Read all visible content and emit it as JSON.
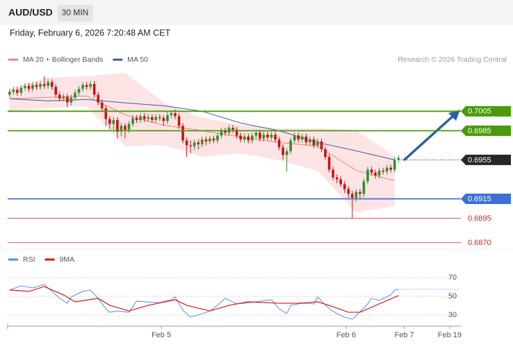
{
  "header": {
    "symbol": "AUD/USD",
    "timeframe": "30 MIN",
    "timestamp": "Friday, February 6, 2026 7:20:48 AM CET"
  },
  "chart_data": [
    {
      "type": "candlestick",
      "source": "Research © 2026 Trading Central",
      "up_color": "#2f8f2f",
      "down_color": "#cc1111",
      "xlim": [
        -0.5,
        117.2
      ],
      "ylim": [
        0.6864,
        0.7068
      ],
      "xticks": [
        {
          "value": 39.4,
          "label": "Feb 5"
        },
        {
          "value": 87.4,
          "label": "Feb 6"
        },
        {
          "value": 102.5,
          "label": "Feb 7"
        },
        {
          "value": 114.3,
          "label": "Feb 19"
        }
      ],
      "open": [
        0.7022,
        0.7025,
        0.7027,
        0.7024,
        0.7029,
        0.7031,
        0.7028,
        0.7032,
        0.703,
        0.7033,
        0.7031,
        0.7035,
        0.703,
        0.7022,
        0.7018,
        0.702,
        0.7014,
        0.7019,
        0.7024,
        0.7028,
        0.7032,
        0.703,
        0.7033,
        0.7022,
        0.7014,
        0.7008,
        0.6997,
        0.6992,
        0.6996,
        0.6984,
        0.699,
        0.6986,
        0.6992,
        0.6998,
        0.6996,
        0.7,
        0.6997,
        0.6999,
        0.6996,
        0.6999,
        0.6998,
        0.6995,
        0.7001,
        0.7003,
        0.7,
        0.699,
        0.6975,
        0.697,
        0.6969,
        0.6973,
        0.6971,
        0.6976,
        0.6974,
        0.6977,
        0.6975,
        0.698,
        0.6985,
        0.6983,
        0.6988,
        0.6986,
        0.698,
        0.6976,
        0.6979,
        0.6975,
        0.698,
        0.6983,
        0.6977,
        0.6981,
        0.6978,
        0.6981,
        0.6976,
        0.6968,
        0.696,
        0.6964,
        0.6975,
        0.698,
        0.6976,
        0.6979,
        0.6973,
        0.6976,
        0.697,
        0.6974,
        0.6966,
        0.6958,
        0.6945,
        0.6937,
        0.6935,
        0.693,
        0.6925,
        0.692,
        0.6916,
        0.6922,
        0.692,
        0.6933,
        0.6945,
        0.6942,
        0.6939,
        0.6944,
        0.6943,
        0.6947,
        0.6945,
        0.6955
      ],
      "high": [
        0.7028,
        0.703,
        0.703,
        0.7032,
        0.7034,
        0.7034,
        0.7035,
        0.7035,
        0.7036,
        0.7041,
        0.7038,
        0.7038,
        0.7033,
        0.7025,
        0.7023,
        0.7023,
        0.7022,
        0.7027,
        0.7031,
        0.7035,
        0.7035,
        0.7036,
        0.7036,
        0.7025,
        0.7017,
        0.7011,
        0.7,
        0.6999,
        0.6999,
        0.6993,
        0.6993,
        0.6995,
        0.7001,
        0.7001,
        0.7003,
        0.7003,
        0.7002,
        0.7002,
        0.7002,
        0.7002,
        0.7001,
        0.7004,
        0.7006,
        0.7007,
        0.7003,
        0.6993,
        0.6978,
        0.6975,
        0.6976,
        0.6976,
        0.6979,
        0.6979,
        0.698,
        0.698,
        0.6983,
        0.6988,
        0.6988,
        0.6991,
        0.6991,
        0.6989,
        0.6983,
        0.6982,
        0.6982,
        0.6983,
        0.6986,
        0.6986,
        0.6984,
        0.6984,
        0.6984,
        0.6984,
        0.6979,
        0.6971,
        0.6967,
        0.6978,
        0.6983,
        0.6983,
        0.6982,
        0.6982,
        0.6979,
        0.6979,
        0.6977,
        0.6977,
        0.6969,
        0.6961,
        0.6948,
        0.694,
        0.6938,
        0.6933,
        0.6928,
        0.6923,
        0.6925,
        0.6925,
        0.6936,
        0.6948,
        0.6948,
        0.6945,
        0.6947,
        0.6947,
        0.695,
        0.695,
        0.6958,
        0.696
      ],
      "low": [
        0.7019,
        0.7022,
        0.7021,
        0.7021,
        0.7026,
        0.7025,
        0.7025,
        0.7027,
        0.7027,
        0.7028,
        0.7028,
        0.7027,
        0.7019,
        0.7015,
        0.7015,
        0.7009,
        0.7011,
        0.7016,
        0.7021,
        0.7025,
        0.7027,
        0.7027,
        0.7019,
        0.7011,
        0.7005,
        0.699,
        0.6987,
        0.6986,
        0.6977,
        0.6979,
        0.6977,
        0.6983,
        0.6989,
        0.6993,
        0.6993,
        0.6994,
        0.6994,
        0.6993,
        0.6993,
        0.6995,
        0.699,
        0.6992,
        0.6998,
        0.6997,
        0.6987,
        0.6972,
        0.6958,
        0.6962,
        0.6965,
        0.6966,
        0.6968,
        0.697,
        0.6971,
        0.6972,
        0.6972,
        0.6977,
        0.698,
        0.698,
        0.6983,
        0.6977,
        0.6973,
        0.6973,
        0.6972,
        0.6972,
        0.6977,
        0.6974,
        0.6974,
        0.6975,
        0.6975,
        0.6973,
        0.6965,
        0.6955,
        0.6943,
        0.6961,
        0.6972,
        0.6973,
        0.6973,
        0.697,
        0.697,
        0.6967,
        0.6967,
        0.6963,
        0.6955,
        0.6942,
        0.6934,
        0.6931,
        0.6927,
        0.6921,
        0.6916,
        0.6895,
        0.6912,
        0.6915,
        0.6917,
        0.693,
        0.6939,
        0.6936,
        0.6936,
        0.694,
        0.694,
        0.6942,
        0.6942,
        0.6952
      ],
      "close": [
        0.7025,
        0.7027,
        0.7024,
        0.7029,
        0.7031,
        0.7028,
        0.7032,
        0.703,
        0.7033,
        0.7031,
        0.7035,
        0.703,
        0.7022,
        0.7018,
        0.702,
        0.7014,
        0.7019,
        0.7024,
        0.7028,
        0.7032,
        0.703,
        0.7033,
        0.7022,
        0.7014,
        0.7008,
        0.6997,
        0.6992,
        0.6996,
        0.6984,
        0.699,
        0.6986,
        0.6992,
        0.6998,
        0.6996,
        0.7,
        0.6997,
        0.6999,
        0.6996,
        0.6999,
        0.6998,
        0.6995,
        0.7001,
        0.7003,
        0.7,
        0.699,
        0.6975,
        0.697,
        0.6969,
        0.6973,
        0.6971,
        0.6976,
        0.6974,
        0.6977,
        0.6975,
        0.698,
        0.6985,
        0.6983,
        0.6988,
        0.6986,
        0.698,
        0.6976,
        0.6979,
        0.6975,
        0.698,
        0.6983,
        0.6977,
        0.6981,
        0.6978,
        0.6981,
        0.6976,
        0.6968,
        0.696,
        0.6964,
        0.6975,
        0.698,
        0.6976,
        0.6979,
        0.6973,
        0.6976,
        0.697,
        0.6974,
        0.6966,
        0.6958,
        0.6945,
        0.6937,
        0.6935,
        0.693,
        0.6925,
        0.692,
        0.6916,
        0.6922,
        0.692,
        0.6933,
        0.6945,
        0.6942,
        0.6939,
        0.6944,
        0.6943,
        0.6947,
        0.6945,
        0.6955,
        0.6957
      ],
      "series": [
        {
          "name": "MA 20 + Bollinger Bands",
          "color": "#ef7f7f",
          "band_color": "#fde4e4",
          "x": [
            0,
            10,
            20,
            30,
            40,
            50,
            60,
            70,
            80,
            90,
            100
          ],
          "values": [
            0.70179,
            0.70193,
            0.70207,
            0.70014,
            0.69907,
            0.6985,
            0.69786,
            0.69729,
            0.69693,
            0.69443,
            0.69336
          ],
          "upper": [
            0.70279,
            0.70393,
            0.70407,
            0.70443,
            0.70136,
            0.69979,
            0.69907,
            0.69872,
            0.69872,
            0.6985,
            0.69586
          ],
          "lower": [
            0.7005,
            0.70086,
            0.70107,
            0.69693,
            0.69707,
            0.69586,
            0.69622,
            0.6955,
            0.69443,
            0.69014,
            0.69079
          ]
        },
        {
          "name": "MA 50",
          "color": "#3b5a9d",
          "x": [
            0,
            10,
            20,
            30,
            40,
            50,
            60,
            70,
            80,
            90,
            100
          ],
          "values": [
            0.70179,
            0.70157,
            0.70172,
            0.70136,
            0.70107,
            0.7005,
            0.69929,
            0.6985,
            0.69729,
            0.69643,
            0.6955
          ]
        }
      ],
      "levels": [
        {
          "value": 0.7005,
          "label": "0.7005",
          "color": "#4a9a0a",
          "boxed": true,
          "line": "solid"
        },
        {
          "value": 0.6985,
          "label": "0.6985",
          "color": "#4a9a0a",
          "boxed": true,
          "line": "solid"
        },
        {
          "value": 0.6955,
          "label": "0.6955",
          "color": "#262626",
          "boxed": true,
          "line": "dotted"
        },
        {
          "value": 0.6915,
          "label": "0.6915",
          "color": "#3d6fd6",
          "boxed": true,
          "line": "solid"
        },
        {
          "value": 0.6895,
          "label": "0.6895",
          "color": "#cc2222",
          "boxed": false,
          "line": "solid"
        },
        {
          "value": 0.687,
          "label": "0.6870",
          "color": "#cc2222",
          "boxed": false,
          "line": "solid"
        }
      ]
    },
    {
      "type": "line",
      "xlim": [
        -0.5,
        117.2
      ],
      "ylim": [
        20,
        81
      ],
      "yticks": [
        30,
        50,
        70
      ],
      "grid": true,
      "series": [
        {
          "name": "RSI",
          "color": "#5b8be0",
          "x": [
            0,
            3,
            6,
            9,
            11,
            13,
            15,
            16,
            19,
            21,
            23,
            25,
            26,
            28,
            31,
            33,
            35,
            39,
            42,
            43,
            45,
            47,
            50,
            52,
            54,
            56,
            59,
            61,
            64,
            68,
            70,
            72,
            73,
            76,
            79,
            80,
            83,
            85,
            87,
            89,
            90,
            93,
            94,
            96,
            99,
            100,
            101
          ],
          "values": [
            56.7,
            61.1,
            58.9,
            62.6,
            55.2,
            47.8,
            42.6,
            49.3,
            55.2,
            56.7,
            47.8,
            36.7,
            33.0,
            34.4,
            33.0,
            44.8,
            44.1,
            43.3,
            46.3,
            49.3,
            35.2,
            27.8,
            31.5,
            34.4,
            40.4,
            47.8,
            41.9,
            42.6,
            44.1,
            46.3,
            36.7,
            31.5,
            40.4,
            42.6,
            41.9,
            49.3,
            36.7,
            31.5,
            27.8,
            25.6,
            29.3,
            41.9,
            47.8,
            45.6,
            51.5,
            56.7,
            57.4
          ]
        },
        {
          "name": "9MA",
          "color": "#e01010",
          "x": [
            0,
            5,
            9,
            14,
            17,
            23,
            26,
            31,
            36,
            43,
            46,
            52,
            57,
            62,
            70,
            75,
            80,
            84,
            88,
            91,
            96,
            101
          ],
          "values": [
            56.7,
            55.2,
            60.4,
            51.5,
            44.1,
            47.8,
            40.4,
            34.4,
            40.4,
            46.3,
            40.4,
            34.4,
            40.4,
            44.1,
            42.6,
            42.6,
            44.1,
            38.9,
            33.0,
            33.0,
            41.9,
            50.7
          ]
        }
      ]
    }
  ]
}
